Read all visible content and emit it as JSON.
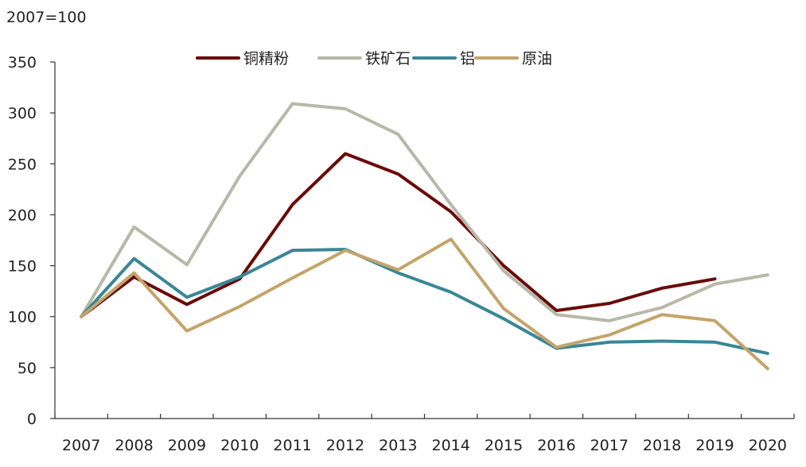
{
  "chart_data": {
    "type": "line",
    "unit_label": "2007=100",
    "categories": [
      "2007",
      "2008",
      "2009",
      "2010",
      "2011",
      "2012",
      "2013",
      "2014",
      "2015",
      "2016",
      "2017",
      "2018",
      "2019",
      "2020"
    ],
    "ylim": [
      0,
      350
    ],
    "yticks": [
      0,
      50,
      100,
      150,
      200,
      250,
      300,
      350
    ],
    "grid": false,
    "legend_position": "top",
    "series": [
      {
        "name": "铜精粉",
        "color": "#6b0a0a",
        "values": [
          100,
          139,
          112,
          137,
          210,
          260,
          240,
          203,
          150,
          106,
          113,
          128,
          137,
          null
        ]
      },
      {
        "name": "铁矿石",
        "color": "#b8b8a8",
        "values": [
          100,
          188,
          151,
          238,
          309,
          304,
          279,
          210,
          145,
          102,
          96,
          109,
          132,
          141
        ]
      },
      {
        "name": "铝",
        "color": "#3a8696",
        "values": [
          100,
          157,
          119,
          139,
          165,
          166,
          143,
          124,
          98,
          69,
          75,
          76,
          75,
          64
        ]
      },
      {
        "name": "原油",
        "color": "#c4a46a",
        "values": [
          100,
          143,
          86,
          110,
          138,
          165,
          146,
          176,
          108,
          70,
          82,
          102,
          96,
          49
        ]
      }
    ]
  }
}
